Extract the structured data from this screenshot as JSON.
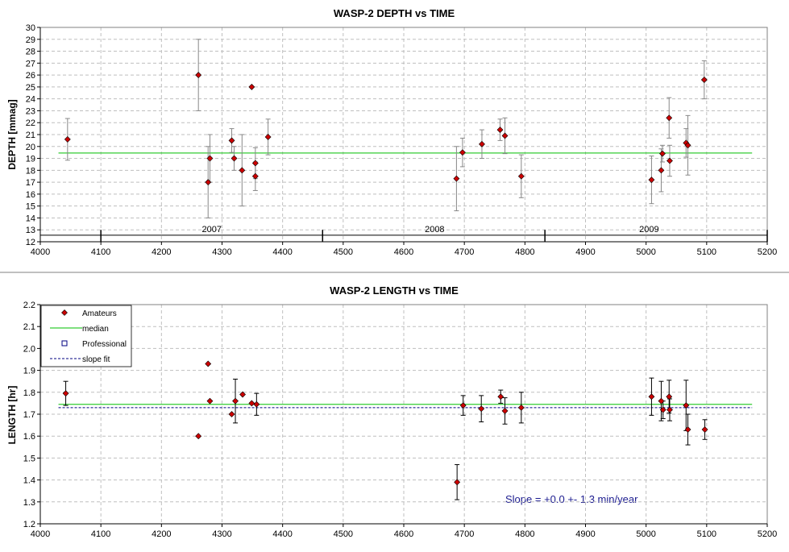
{
  "colors": {
    "marker": "#cc0000",
    "median": "#33cc33",
    "slope_fit": "#000080",
    "errorbar_top": "#888888",
    "errorbar_bottom": "#000000",
    "grid": "#bfbfbf",
    "annotation": "#1b1b8f"
  },
  "chart_data": [
    {
      "type": "scatter",
      "title": "WASP-2 DEPTH vs TIME",
      "ylabel": "DEPTH [mmag]",
      "xlabel": "",
      "xlim": [
        4000,
        5200
      ],
      "ylim": [
        12,
        30
      ],
      "xticks": [
        4000,
        4100,
        4200,
        4300,
        4400,
        4500,
        4600,
        4700,
        4800,
        4900,
        5000,
        5100,
        5200
      ],
      "yticks": [
        12,
        13,
        14,
        15,
        16,
        17,
        18,
        19,
        20,
        21,
        22,
        23,
        24,
        25,
        26,
        27,
        28,
        29,
        30
      ],
      "grid": true,
      "year_labels": [
        {
          "label": "2007",
          "x": 4283
        },
        {
          "label": "2008",
          "x": 4651
        },
        {
          "label": "2009",
          "x": 5005
        }
      ],
      "year_separators": [
        4100,
        4466,
        4833,
        5200
      ],
      "median": 19.45,
      "series": [
        {
          "points": [
            {
              "x": 4045,
              "y": 20.6,
              "err": 1.75
            },
            {
              "x": 4261,
              "y": 26.0,
              "err": 3.0
            },
            {
              "x": 4277,
              "y": 17.0,
              "err": 3.0
            },
            {
              "x": 4280,
              "y": 19.0,
              "err": 2.0
            },
            {
              "x": 4316,
              "y": 20.5,
              "err": 1.0
            },
            {
              "x": 4320,
              "y": 19.0,
              "err": 1.0
            },
            {
              "x": 4333,
              "y": 18.0,
              "err": 3.0
            },
            {
              "x": 4349,
              "y": 25.0,
              "err": 0
            },
            {
              "x": 4355,
              "y": 18.6,
              "err": 1.3
            },
            {
              "x": 4355,
              "y": 17.5,
              "err": 1.2
            },
            {
              "x": 4376,
              "y": 20.8,
              "err": 1.5
            },
            {
              "x": 4687,
              "y": 17.3,
              "err": 2.7
            },
            {
              "x": 4697,
              "y": 19.5,
              "err": 1.2
            },
            {
              "x": 4729,
              "y": 20.2,
              "err": 1.2
            },
            {
              "x": 4759,
              "y": 21.4,
              "err": 0.9
            },
            {
              "x": 4767,
              "y": 20.9,
              "err": 1.5
            },
            {
              "x": 4794,
              "y": 17.5,
              "err": 1.8
            },
            {
              "x": 5009,
              "y": 17.2,
              "err": 2.0
            },
            {
              "x": 5025,
              "y": 18.0,
              "err": 1.8
            },
            {
              "x": 5027,
              "y": 19.4,
              "err": 0.7
            },
            {
              "x": 5038,
              "y": 22.4,
              "err": 1.7
            },
            {
              "x": 5039,
              "y": 18.8,
              "err": 1.3
            },
            {
              "x": 5066,
              "y": 20.3,
              "err": 1.2
            },
            {
              "x": 5069,
              "y": 20.1,
              "err": 2.5
            },
            {
              "x": 5096,
              "y": 25.6,
              "err": 1.6
            }
          ]
        }
      ]
    },
    {
      "type": "scatter",
      "title": "WASP-2 LENGTH vs TIME",
      "ylabel": "LENGTH [hr]",
      "xlabel": "",
      "xlim": [
        4000,
        5200
      ],
      "ylim": [
        1.2,
        2.2
      ],
      "xticks": [
        4000,
        4100,
        4200,
        4300,
        4400,
        4500,
        4600,
        4700,
        4800,
        4900,
        5000,
        5100,
        5200
      ],
      "yticks": [
        1.2,
        1.3,
        1.4,
        1.5,
        1.6,
        1.7,
        1.8,
        1.9,
        2.0,
        2.1,
        2.2
      ],
      "grid": true,
      "legend_position": "top-left",
      "legend": [
        {
          "label": "Amateurs",
          "symbol": "diamond"
        },
        {
          "label": "median",
          "symbol": "solid-line"
        },
        {
          "label": "Professional",
          "symbol": "open-square"
        },
        {
          "label": "slope fit",
          "symbol": "dashed-line"
        }
      ],
      "median": 1.745,
      "slope_fit": 1.73,
      "annotation": "Slope = +0.0 +- 1.3 min/year",
      "series": [
        {
          "name": "Amateurs",
          "points": [
            {
              "x": 4042,
              "y": 1.795,
              "err": 0.055
            },
            {
              "x": 4261,
              "y": 1.6,
              "err": 0
            },
            {
              "x": 4277,
              "y": 1.93,
              "err": 0
            },
            {
              "x": 4280,
              "y": 1.76,
              "err": 0
            },
            {
              "x": 4316,
              "y": 1.7,
              "err": 0
            },
            {
              "x": 4322,
              "y": 1.76,
              "err": 0.1
            },
            {
              "x": 4334,
              "y": 1.79,
              "err": 0
            },
            {
              "x": 4349,
              "y": 1.75,
              "err": 0
            },
            {
              "x": 4357,
              "y": 1.745,
              "err": 0.05
            },
            {
              "x": 4688,
              "y": 1.39,
              "err": 0.08
            },
            {
              "x": 4698,
              "y": 1.74,
              "err": 0.045
            },
            {
              "x": 4728,
              "y": 1.725,
              "err": 0.06
            },
            {
              "x": 4760,
              "y": 1.78,
              "err": 0.03
            },
            {
              "x": 4767,
              "y": 1.715,
              "err": 0.06
            },
            {
              "x": 4794,
              "y": 1.73,
              "err": 0.07
            },
            {
              "x": 5009,
              "y": 1.78,
              "err": 0.085
            },
            {
              "x": 5025,
              "y": 1.76,
              "err": 0.09
            },
            {
              "x": 5028,
              "y": 1.72,
              "err": 0.04
            },
            {
              "x": 5038,
              "y": 1.78,
              "err": 0.075
            },
            {
              "x": 5039,
              "y": 1.72,
              "err": 0.05
            },
            {
              "x": 5066,
              "y": 1.74,
              "err": 0.115
            },
            {
              "x": 5069,
              "y": 1.63,
              "err": 0.07
            },
            {
              "x": 5097,
              "y": 1.63,
              "err": 0.045
            }
          ]
        }
      ]
    }
  ]
}
